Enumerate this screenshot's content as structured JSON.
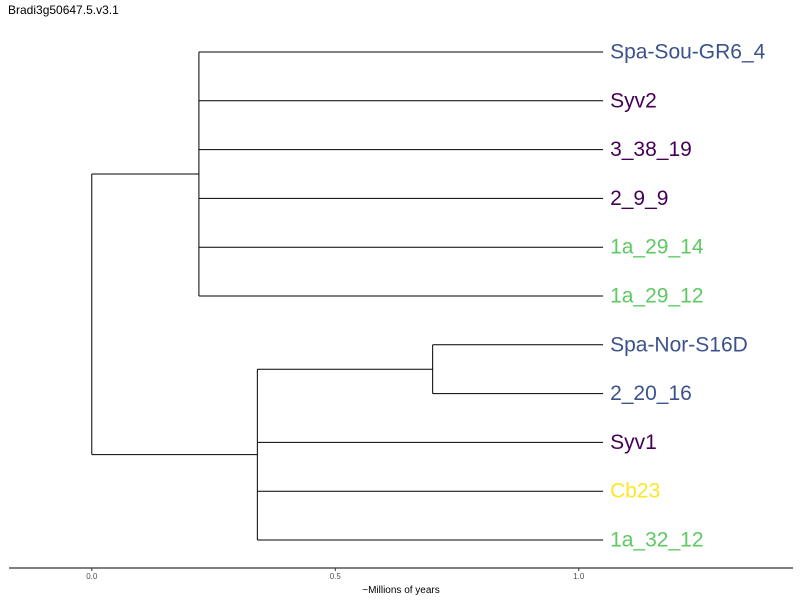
{
  "chart_data": {
    "type": "dendrogram",
    "title": "Bradi3g50647.5.v3.1",
    "xlabel": "~Millions of years",
    "xlim": [
      -0.17,
      1.44
    ],
    "x_ticks": [
      {
        "value": 0.0,
        "label": "0.0"
      },
      {
        "value": 0.5,
        "label": "0.5"
      },
      {
        "value": 1.0,
        "label": "1.0"
      }
    ],
    "groups": [
      {
        "id": "g1",
        "color": "#3b528b"
      },
      {
        "id": "g2",
        "color": "#440154"
      },
      {
        "id": "g3",
        "color": "#5ec962"
      },
      {
        "id": "g4",
        "color": "#fde725"
      }
    ],
    "leaves": [
      {
        "label": "Spa-Sou-GR6_4",
        "group": "g1"
      },
      {
        "label": "Syv2",
        "group": "g2"
      },
      {
        "label": "3_38_19",
        "group": "g2"
      },
      {
        "label": "2_9_9",
        "group": "g2"
      },
      {
        "label": "1a_29_14",
        "group": "g3"
      },
      {
        "label": "1a_29_12",
        "group": "g3"
      },
      {
        "label": "Spa-Nor-S16D",
        "group": "g1"
      },
      {
        "label": "2_20_16",
        "group": "g1"
      },
      {
        "label": "Syv1",
        "group": "g2"
      },
      {
        "label": "Cb23",
        "group": "g4"
      },
      {
        "label": "1a_32_12",
        "group": "g3"
      }
    ],
    "tip_x": 1.05,
    "tree": {
      "height": 0.0,
      "children": [
        {
          "height": 0.22,
          "children": [
            0,
            1,
            2,
            3,
            4,
            5
          ]
        },
        {
          "height": 0.34,
          "children": [
            {
              "height": 0.7,
              "children": [
                6,
                7
              ]
            },
            8,
            9,
            10
          ]
        }
      ]
    }
  }
}
